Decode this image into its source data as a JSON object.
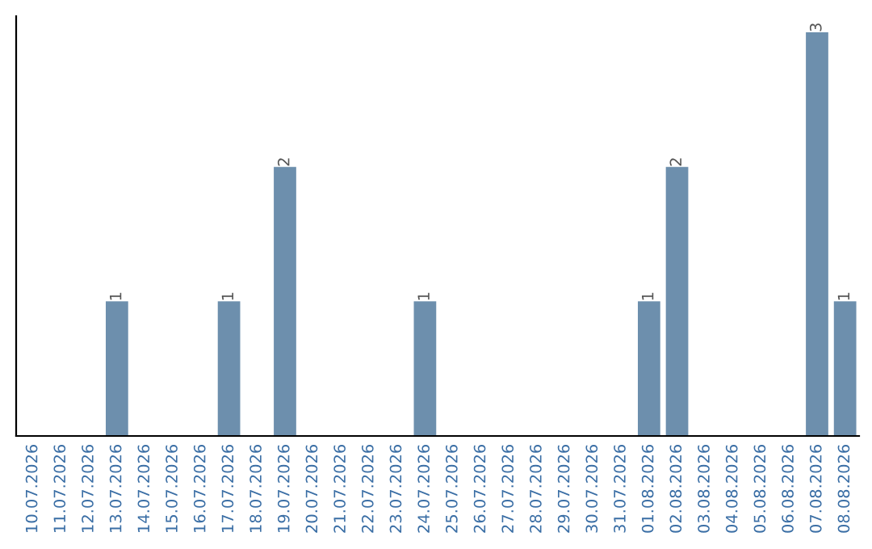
{
  "chart_data": {
    "type": "bar",
    "categories": [
      "10.07.2026",
      "11.07.2026",
      "12.07.2026",
      "13.07.2026",
      "14.07.2026",
      "15.07.2026",
      "16.07.2026",
      "17.07.2026",
      "18.07.2026",
      "19.07.2026",
      "20.07.2026",
      "21.07.2026",
      "22.07.2026",
      "23.07.2026",
      "24.07.2026",
      "25.07.2026",
      "26.07.2026",
      "27.07.2026",
      "28.07.2026",
      "29.07.2026",
      "30.07.2026",
      "31.07.2026",
      "01.08.2026",
      "02.08.2026",
      "03.08.2026",
      "04.08.2026",
      "05.08.2026",
      "06.08.2026",
      "07.08.2026",
      "08.08.2026"
    ],
    "values": [
      0,
      0,
      0,
      1,
      0,
      0,
      0,
      1,
      0,
      2,
      0,
      0,
      0,
      0,
      1,
      0,
      0,
      0,
      0,
      0,
      0,
      0,
      1,
      2,
      0,
      0,
      0,
      0,
      3,
      1
    ],
    "value_labels": [
      null,
      null,
      null,
      "1",
      null,
      null,
      null,
      "1",
      null,
      "2",
      null,
      null,
      null,
      null,
      "1",
      null,
      null,
      null,
      null,
      null,
      null,
      null,
      "1",
      "2",
      null,
      null,
      null,
      null,
      "3",
      "1"
    ],
    "color": "#6d8fad",
    "tick_labels": "x",
    "grid": false,
    "legend": false
  }
}
